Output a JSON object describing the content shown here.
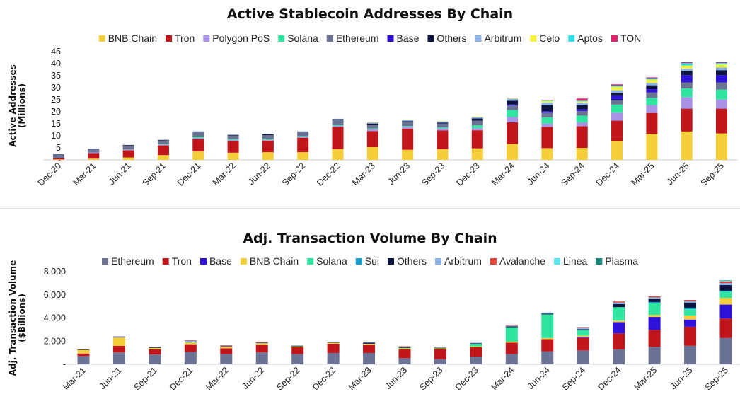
{
  "chart_data": [
    {
      "type": "bar",
      "stacked": true,
      "title": "Active Stablecoin Addresses By Chain",
      "ylabel": "Active Addresses (Millions)",
      "ylim": [
        0,
        45
      ],
      "yticks": [
        "-",
        "5",
        "10",
        "15",
        "20",
        "25",
        "30",
        "35",
        "40",
        "45"
      ],
      "legend_position": "top",
      "grid": false,
      "categories": [
        "Dec-20",
        "Mar-21",
        "Jun-21",
        "Sep-21",
        "Dec-21",
        "Mar-22",
        "Jun-22",
        "Sep-22",
        "Dec-22",
        "Mar-23",
        "Jun-23",
        "Sep-23",
        "Dec-23",
        "Mar-24",
        "Jun-24",
        "Sep-24",
        "Dec-24",
        "Mar-25",
        "Jun-25",
        "Sep-25"
      ],
      "series": [
        {
          "name": "BNB Chain",
          "color": "#f5cf3a",
          "values": [
            0.2,
            0.5,
            1.0,
            2.0,
            3.5,
            3.0,
            3.2,
            3.2,
            4.5,
            5.3,
            4.2,
            4.5,
            4.8,
            6.6,
            4.9,
            5.0,
            7.8,
            10.8,
            11.8,
            11.0
          ]
        },
        {
          "name": "Tron",
          "color": "#c0151b",
          "values": [
            0.5,
            2.3,
            3.0,
            4.0,
            5.2,
            4.8,
            4.8,
            6.0,
            9.2,
            6.7,
            8.8,
            7.7,
            7.5,
            9.0,
            8.8,
            9.0,
            8.5,
            8.7,
            9.5,
            10.3
          ]
        },
        {
          "name": "Polygon PoS",
          "color": "#a893e6",
          "values": [
            0.1,
            0.3,
            0.3,
            0.4,
            0.5,
            0.4,
            0.4,
            0.4,
            0.6,
            0.8,
            0.8,
            0.9,
            0.9,
            2.2,
            1.4,
            1.6,
            3.3,
            3.3,
            4.8,
            3.8
          ]
        },
        {
          "name": "Solana",
          "color": "#2ee6a0",
          "values": [
            0,
            0,
            0.1,
            0.2,
            0.5,
            0.4,
            0.4,
            0.3,
            0.4,
            0.3,
            0.3,
            0.4,
            1.2,
            2.9,
            2.5,
            2.8,
            3.4,
            3.0,
            3.6,
            4.1
          ]
        },
        {
          "name": "Ethereum",
          "color": "#6b7394",
          "values": [
            1.5,
            1.5,
            1.6,
            1.5,
            1.8,
            1.5,
            1.5,
            1.6,
            1.8,
            1.6,
            1.6,
            1.6,
            1.9,
            1.9,
            2.0,
            1.9,
            2.0,
            2.2,
            2.5,
            3.0
          ]
        },
        {
          "name": "Base",
          "color": "#2f12d9",
          "values": [
            0,
            0,
            0,
            0,
            0,
            0,
            0,
            0,
            0,
            0,
            0,
            0,
            0,
            0.4,
            0.6,
            0.7,
            1.6,
            1.4,
            3.0,
            3.0
          ]
        },
        {
          "name": "Others",
          "color": "#0c1540",
          "values": [
            0.1,
            0.1,
            0.2,
            0.2,
            0.3,
            0.3,
            0.3,
            0.3,
            0.4,
            0.4,
            0.4,
            0.4,
            0.9,
            1.6,
            2.6,
            1.9,
            1.4,
            1.6,
            1.8,
            2.1
          ]
        },
        {
          "name": "Arbitrum",
          "color": "#8ab4e6",
          "values": [
            0,
            0,
            0,
            0,
            0.1,
            0.1,
            0.1,
            0.1,
            0.2,
            0.4,
            0.5,
            0.5,
            0.6,
            0.7,
            1.1,
            0.9,
            1.0,
            1.0,
            1.0,
            1.1
          ]
        },
        {
          "name": "Celo",
          "color": "#f6f23a",
          "values": [
            0,
            0,
            0,
            0,
            0,
            0,
            0,
            0,
            0,
            0.1,
            0.1,
            0.1,
            0.2,
            0.2,
            0.6,
            0.5,
            1.4,
            1.4,
            1.2,
            1.3
          ]
        },
        {
          "name": "Aptos",
          "color": "#30e3ec",
          "values": [
            0,
            0,
            0,
            0,
            0,
            0,
            0,
            0,
            0,
            0,
            0,
            0,
            0,
            0.1,
            0.3,
            0.3,
            0.5,
            0.5,
            1.1,
            0.6
          ]
        },
        {
          "name": "TON",
          "color": "#e0236b",
          "values": [
            0,
            0,
            0,
            0,
            0,
            0,
            0,
            0,
            0,
            0,
            0,
            0,
            0,
            0.1,
            0.2,
            0.9,
            0.5,
            0.4,
            0.3,
            0.3
          ]
        }
      ]
    },
    {
      "type": "bar",
      "stacked": true,
      "title": "Adj. Transaction Volume By Chain",
      "ylabel": "Adj. Transaction Volume ($Billions)",
      "ylim": [
        0,
        9000
      ],
      "yticks": [
        "-",
        "2,000",
        "4,000",
        "6,000",
        "8,000"
      ],
      "legend_position": "top",
      "grid": false,
      "categories": [
        "Mar-21",
        "Jun-21",
        "Sep-21",
        "Dec-21",
        "Mar-22",
        "Jun-22",
        "Sep-22",
        "Dec-22",
        "Mar-23",
        "Jun-23",
        "Sep-23",
        "Dec-23",
        "Mar-24",
        "Jun-24",
        "Sep-24",
        "Dec-24",
        "Mar-25",
        "Jun-25",
        "Sep-25"
      ],
      "series": [
        {
          "name": "Ethereum",
          "color": "#6b7394",
          "values": [
            800,
            1150,
            950,
            1200,
            1000,
            1150,
            1000,
            1100,
            1100,
            600,
            500,
            750,
            1000,
            1250,
            1350,
            1450,
            1700,
            1800,
            2550
          ]
        },
        {
          "name": "Tron",
          "color": "#c0151b",
          "values": [
            250,
            650,
            500,
            750,
            550,
            750,
            650,
            900,
            800,
            850,
            950,
            900,
            1100,
            1200,
            1250,
            1550,
            1650,
            1850,
            1900
          ]
        },
        {
          "name": "Base",
          "color": "#2f12d9",
          "values": [
            0,
            0,
            0,
            0,
            0,
            0,
            0,
            0,
            0,
            0,
            0,
            0,
            0,
            0,
            80,
            1100,
            1250,
            700,
            1350
          ]
        },
        {
          "name": "BNB Chain",
          "color": "#f5cf3a",
          "values": [
            350,
            800,
            150,
            150,
            150,
            150,
            100,
            100,
            100,
            100,
            100,
            100,
            100,
            100,
            100,
            150,
            200,
            400,
            650
          ]
        },
        {
          "name": "Solana",
          "color": "#2ee6a0",
          "values": [
            0,
            0,
            0,
            50,
            0,
            0,
            0,
            0,
            0,
            50,
            0,
            250,
            1400,
            2300,
            550,
            1300,
            1150,
            600,
            600
          ]
        },
        {
          "name": "Sui",
          "color": "#1a9fcf",
          "values": [
            0,
            0,
            0,
            0,
            0,
            0,
            0,
            0,
            0,
            0,
            0,
            0,
            0,
            0,
            0,
            0,
            100,
            150,
            100
          ]
        },
        {
          "name": "Others",
          "color": "#0c1540",
          "values": [
            50,
            100,
            100,
            50,
            50,
            50,
            50,
            50,
            100,
            50,
            50,
            50,
            80,
            80,
            80,
            300,
            300,
            500,
            550
          ]
        },
        {
          "name": "Arbitrum",
          "color": "#8ab4e6",
          "values": [
            0,
            0,
            0,
            100,
            50,
            50,
            50,
            50,
            50,
            50,
            50,
            50,
            80,
            100,
            150,
            150,
            150,
            150,
            200
          ]
        },
        {
          "name": "Avalanche",
          "color": "#e34234",
          "values": [
            0,
            0,
            0,
            50,
            50,
            50,
            0,
            0,
            0,
            50,
            0,
            0,
            50,
            0,
            50,
            100,
            100,
            100,
            150
          ]
        },
        {
          "name": "Linea",
          "color": "#5ae6ec",
          "values": [
            0,
            0,
            0,
            0,
            0,
            0,
            0,
            0,
            0,
            0,
            0,
            0,
            0,
            0,
            0,
            0,
            0,
            0,
            50
          ]
        },
        {
          "name": "Plasma",
          "color": "#16867a",
          "values": [
            0,
            0,
            0,
            0,
            0,
            0,
            0,
            0,
            0,
            0,
            0,
            0,
            0,
            0,
            0,
            0,
            0,
            0,
            50
          ]
        }
      ]
    }
  ]
}
